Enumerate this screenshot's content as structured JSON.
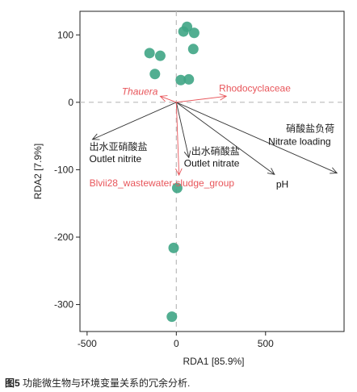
{
  "chart_data": {
    "type": "scatter",
    "xlabel": "RDA1 [85.9%]",
    "ylabel": "RDA2 [7.9%]",
    "xlim": [
      -540,
      940
    ],
    "ylim": [
      -340,
      135
    ],
    "xticks": [
      -500,
      0,
      500
    ],
    "yticks": [
      -300,
      -200,
      -100,
      0,
      100
    ],
    "colors": {
      "points": "#3fa585",
      "env_arrows": "#333333",
      "taxa_arrows": "#e8555a",
      "zero_lines": "#bbbbbb"
    },
    "points": [
      {
        "x": 60,
        "y": 112
      },
      {
        "x": 40,
        "y": 105
      },
      {
        "x": 100,
        "y": 103
      },
      {
        "x": 95,
        "y": 79
      },
      {
        "x": -150,
        "y": 73
      },
      {
        "x": -90,
        "y": 69
      },
      {
        "x": -120,
        "y": 42
      },
      {
        "x": 25,
        "y": 33
      },
      {
        "x": 70,
        "y": 34
      },
      {
        "x": 5,
        "y": -127
      },
      {
        "x": -15,
        "y": -216
      },
      {
        "x": -25,
        "y": -318
      }
    ],
    "env_vectors": [
      {
        "label_cn": "出水亚硝酸盐",
        "label_en": "Outlet nitrite",
        "x": -470,
        "y": -55
      },
      {
        "label_cn": "出水硝酸盐",
        "label_en": "Outlet nitrate",
        "x": 70,
        "y": -82
      },
      {
        "label_cn": "",
        "label_en": "pH",
        "x": 550,
        "y": -107
      },
      {
        "label_cn": "硝酸盐负荷",
        "label_en": "Nitrate loading",
        "x": 900,
        "y": -105
      }
    ],
    "taxa_vectors": [
      {
        "label": "Thauera",
        "x": -90,
        "y": 9
      },
      {
        "label": "Rhodocyclaceae",
        "x": 280,
        "y": 9
      },
      {
        "label": "Blvii28_wastewater-sludge_group",
        "x": 15,
        "y": -108
      }
    ]
  },
  "caption": {
    "prefix": "图5",
    "text": "功能微生物与环境变量关系的冗余分析."
  }
}
